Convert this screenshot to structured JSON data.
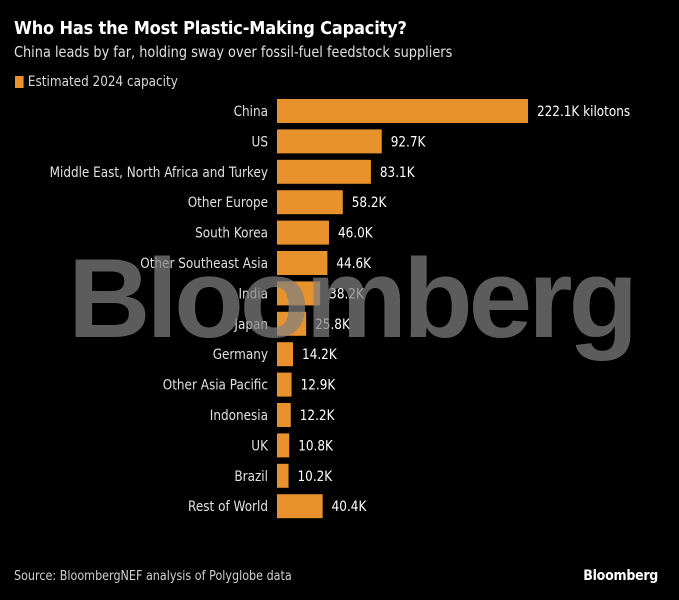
{
  "header": {
    "title": "Who Has the Most Plastic-Making Capacity?",
    "subtitle": "China leads by far, holding sway over fossil-fuel feedstock suppliers"
  },
  "legend": {
    "label": "Estimated 2024 capacity",
    "color": "#e8922e"
  },
  "watermark": "Bloomberg",
  "footer": {
    "source": "Source: BloombergNEF analysis of Polyglobe data",
    "logo": "Bloomberg"
  },
  "chart_data": {
    "type": "bar",
    "orientation": "horizontal",
    "title": "Who Has the Most Plastic-Making Capacity?",
    "subtitle": "China leads by far, holding sway over fossil-fuel feedstock suppliers",
    "xlabel": "",
    "ylabel": "",
    "unit": "kilotons",
    "grid": false,
    "legend_position": "top-left",
    "series": [
      {
        "name": "Estimated 2024 capacity",
        "color": "#e8922e",
        "values": [
          222.1,
          92.7,
          83.1,
          58.2,
          46.0,
          44.6,
          38.2,
          25.8,
          14.2,
          12.9,
          12.2,
          10.8,
          10.2,
          40.4
        ]
      }
    ],
    "categories": [
      "China",
      "US",
      "Middle East, North Africa and Turkey",
      "Other Europe",
      "South Korea",
      "Other Southeast Asia",
      "India",
      "Japan",
      "Germany",
      "Other Asia Pacific",
      "Indonesia",
      "UK",
      "Brazil",
      "Rest of World"
    ],
    "data_labels": [
      "222.1K kilotons",
      "92.7K",
      "83.1K",
      "58.2K",
      "46.0K",
      "44.6K",
      "38.2K",
      "25.8K",
      "14.2K",
      "12.9K",
      "12.2K",
      "10.8K",
      "10.2K",
      "40.4K"
    ],
    "xlim": [
      0,
      222.1
    ]
  }
}
